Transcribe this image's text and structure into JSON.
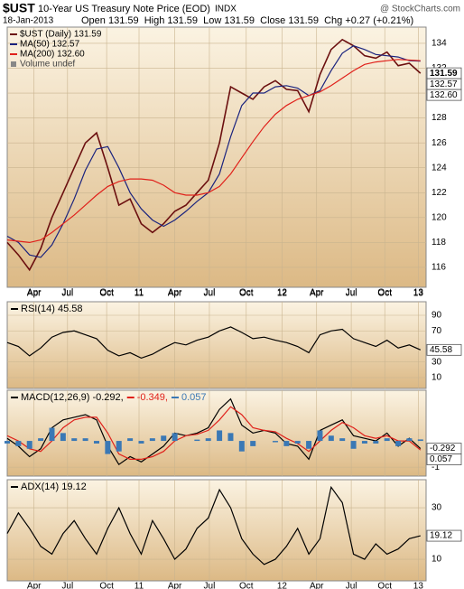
{
  "chart_data": [
    {
      "type": "line",
      "symbol": "$UST",
      "title": "10-Year US Treasury Note Price (EOD)",
      "exchange": "INDX",
      "source": "@ StockCharts.com",
      "date": "18-Jan-2013",
      "stats": "Open 131.59  High 131.59  Low 131.59  Close 131.59  Chg +0.27 (+0.21%)",
      "legend_extra": "Volume undef",
      "x": [
        0,
        1,
        2,
        3,
        4,
        5,
        6,
        7,
        8,
        9,
        10,
        11,
        12,
        13,
        14,
        15,
        16,
        17,
        18,
        19,
        20,
        21,
        22,
        23,
        24,
        25,
        26,
        27,
        28,
        29,
        30,
        31,
        32,
        33,
        34,
        35,
        36,
        37
      ],
      "xlim": [
        0,
        37.5
      ],
      "xticks": [
        {
          "value": 2.4,
          "label": "Apr"
        },
        {
          "value": 5.4,
          "label": "Jul"
        },
        {
          "value": 8.9,
          "label": "Oct"
        },
        {
          "value": 11.8,
          "label": "11"
        },
        {
          "value": 15.0,
          "label": "Apr"
        },
        {
          "value": 18.1,
          "label": "Jul"
        },
        {
          "value": 21.4,
          "label": "Oct"
        },
        {
          "value": 24.6,
          "label": "12"
        },
        {
          "value": 27.7,
          "label": "Apr"
        },
        {
          "value": 30.8,
          "label": "Jul"
        },
        {
          "value": 33.8,
          "label": "Oct"
        },
        {
          "value": 36.8,
          "label": "13"
        }
      ],
      "ylim": [
        114.4,
        135.3
      ],
      "yticks": [
        116,
        118,
        120,
        122,
        124,
        126,
        128,
        130,
        132,
        134
      ],
      "grid": true,
      "series": [
        {
          "name": "$UST (Daily) 131.59",
          "color": "#6b0f0f",
          "last_label": "131.59",
          "values": [
            118,
            117,
            115.8,
            117.5,
            120,
            122,
            124,
            126,
            126.8,
            124,
            121,
            121.5,
            119.5,
            118.8,
            119.5,
            120.5,
            121,
            122,
            123,
            126,
            130.5,
            130,
            129.5,
            130.5,
            131,
            130.3,
            130.2,
            128.5,
            131.5,
            133.5,
            134.3,
            133.8,
            133,
            132.8,
            133.3,
            132.2,
            132.4,
            131.59
          ]
        },
        {
          "name": "MA(50) 132.57",
          "color": "#1a237e",
          "last_label": "132.57",
          "values": [
            118.5,
            118,
            117,
            116.8,
            117.8,
            119.5,
            121.5,
            123.8,
            125.5,
            125.7,
            124,
            122,
            120.7,
            119.8,
            119.3,
            119.8,
            120.5,
            121.3,
            122,
            123.5,
            126.5,
            129,
            130,
            130,
            130.5,
            130.6,
            130.4,
            129.8,
            130.2,
            131.8,
            133.2,
            133.8,
            133.5,
            133.1,
            133,
            132.9,
            132.6,
            132.57
          ]
        },
        {
          "name": "MA(200) 132.60",
          "color": "#e0201a",
          "last_label": "132.60",
          "values": [
            118.2,
            118.1,
            118,
            118.2,
            118.8,
            119.5,
            120.2,
            121,
            121.8,
            122.5,
            122.9,
            123.1,
            123.1,
            123,
            122.6,
            122,
            121.8,
            121.8,
            122,
            122.5,
            123.5,
            124.8,
            126.1,
            127.3,
            128.3,
            129,
            129.5,
            129.8,
            130.1,
            130.6,
            131.2,
            131.8,
            132.3,
            132.5,
            132.6,
            132.7,
            132.65,
            132.6
          ]
        }
      ]
    },
    {
      "type": "line",
      "ylim": [
        -3.9,
        107.4
      ],
      "yticks": [
        10,
        30,
        70,
        90
      ],
      "grid": true,
      "series": [
        {
          "name": "RSI(14) 45.58",
          "color": "#000000",
          "last_label": "45.58",
          "values": [
            55,
            50,
            38,
            48,
            62,
            68,
            70,
            65,
            60,
            45,
            38,
            42,
            35,
            40,
            48,
            55,
            52,
            58,
            62,
            70,
            75,
            68,
            60,
            62,
            58,
            55,
            50,
            42,
            65,
            70,
            72,
            60,
            55,
            50,
            58,
            48,
            52,
            45.58
          ]
        }
      ]
    },
    {
      "type": "line",
      "ylim": [
        -1.34,
        1.93
      ],
      "yticks": [
        -1
      ],
      "grid": true,
      "series": [
        {
          "name": "MACD(12,26,9) -0.292,",
          "color": "#000000",
          "last_label": "-0.292",
          "values": [
            0.1,
            -0.2,
            -0.6,
            -0.3,
            0.5,
            0.8,
            0.9,
            1.0,
            0.8,
            -0.2,
            -0.9,
            -0.6,
            -0.8,
            -0.5,
            -0.2,
            0.3,
            0.2,
            0.3,
            0.5,
            1.2,
            1.6,
            0.6,
            0.3,
            0.4,
            0.3,
            -0.1,
            -0.2,
            -0.7,
            0.4,
            0.6,
            0.8,
            0.2,
            0.1,
            0.0,
            0.3,
            -0.2,
            0.1,
            -0.292
          ]
        },
        {
          "name": "-0.349,",
          "color": "#e0201a",
          "values": [
            0.2,
            0.0,
            -0.3,
            -0.4,
            0.0,
            0.5,
            0.8,
            0.9,
            0.9,
            0.3,
            -0.5,
            -0.7,
            -0.7,
            -0.6,
            -0.4,
            0.0,
            0.2,
            0.25,
            0.4,
            0.8,
            1.3,
            1.0,
            0.5,
            0.4,
            0.35,
            0.1,
            -0.1,
            -0.4,
            0.0,
            0.4,
            0.7,
            0.5,
            0.2,
            0.1,
            0.2,
            0.0,
            0.0,
            -0.349
          ]
        },
        {
          "name": "0.057",
          "color": "#3a78b5",
          "style": "bar",
          "last_label": "0.057",
          "values": [
            -0.1,
            -0.2,
            -0.3,
            0.1,
            0.5,
            0.3,
            0.1,
            0.1,
            -0.1,
            -0.5,
            -0.4,
            0.1,
            -0.1,
            0.1,
            0.2,
            0.3,
            0,
            0.05,
            0.1,
            0.4,
            0.3,
            -0.4,
            -0.2,
            0,
            -0.05,
            -0.2,
            -0.1,
            -0.3,
            0.4,
            0.2,
            0.1,
            -0.3,
            -0.1,
            -0.1,
            0.1,
            -0.2,
            0.1,
            0.057
          ]
        }
      ]
    },
    {
      "type": "line",
      "ylim": [
        1.6,
        40.9
      ],
      "yticks": [
        10,
        30
      ],
      "grid": true,
      "xticks": [
        {
          "value": 2.4,
          "label": "Apr"
        },
        {
          "value": 5.4,
          "label": "Jul"
        },
        {
          "value": 8.9,
          "label": "Oct"
        },
        {
          "value": 11.8,
          "label": "11"
        },
        {
          "value": 15.0,
          "label": "Apr"
        },
        {
          "value": 18.1,
          "label": "Jul"
        },
        {
          "value": 21.4,
          "label": "Oct"
        },
        {
          "value": 24.6,
          "label": "12"
        },
        {
          "value": 27.7,
          "label": "Apr"
        },
        {
          "value": 30.8,
          "label": "Jul"
        },
        {
          "value": 33.8,
          "label": "Oct"
        },
        {
          "value": 36.8,
          "label": "13"
        }
      ],
      "series": [
        {
          "name": "ADX(14) 19.12",
          "color": "#000000",
          "last_label": "19.12",
          "values": [
            20,
            28,
            22,
            15,
            12,
            20,
            25,
            18,
            12,
            22,
            30,
            20,
            12,
            25,
            18,
            10,
            14,
            22,
            26,
            37,
            30,
            18,
            12,
            8,
            10,
            15,
            22,
            12,
            18,
            38,
            32,
            12,
            10,
            16,
            12,
            14,
            18,
            19.12
          ]
        }
      ]
    }
  ]
}
